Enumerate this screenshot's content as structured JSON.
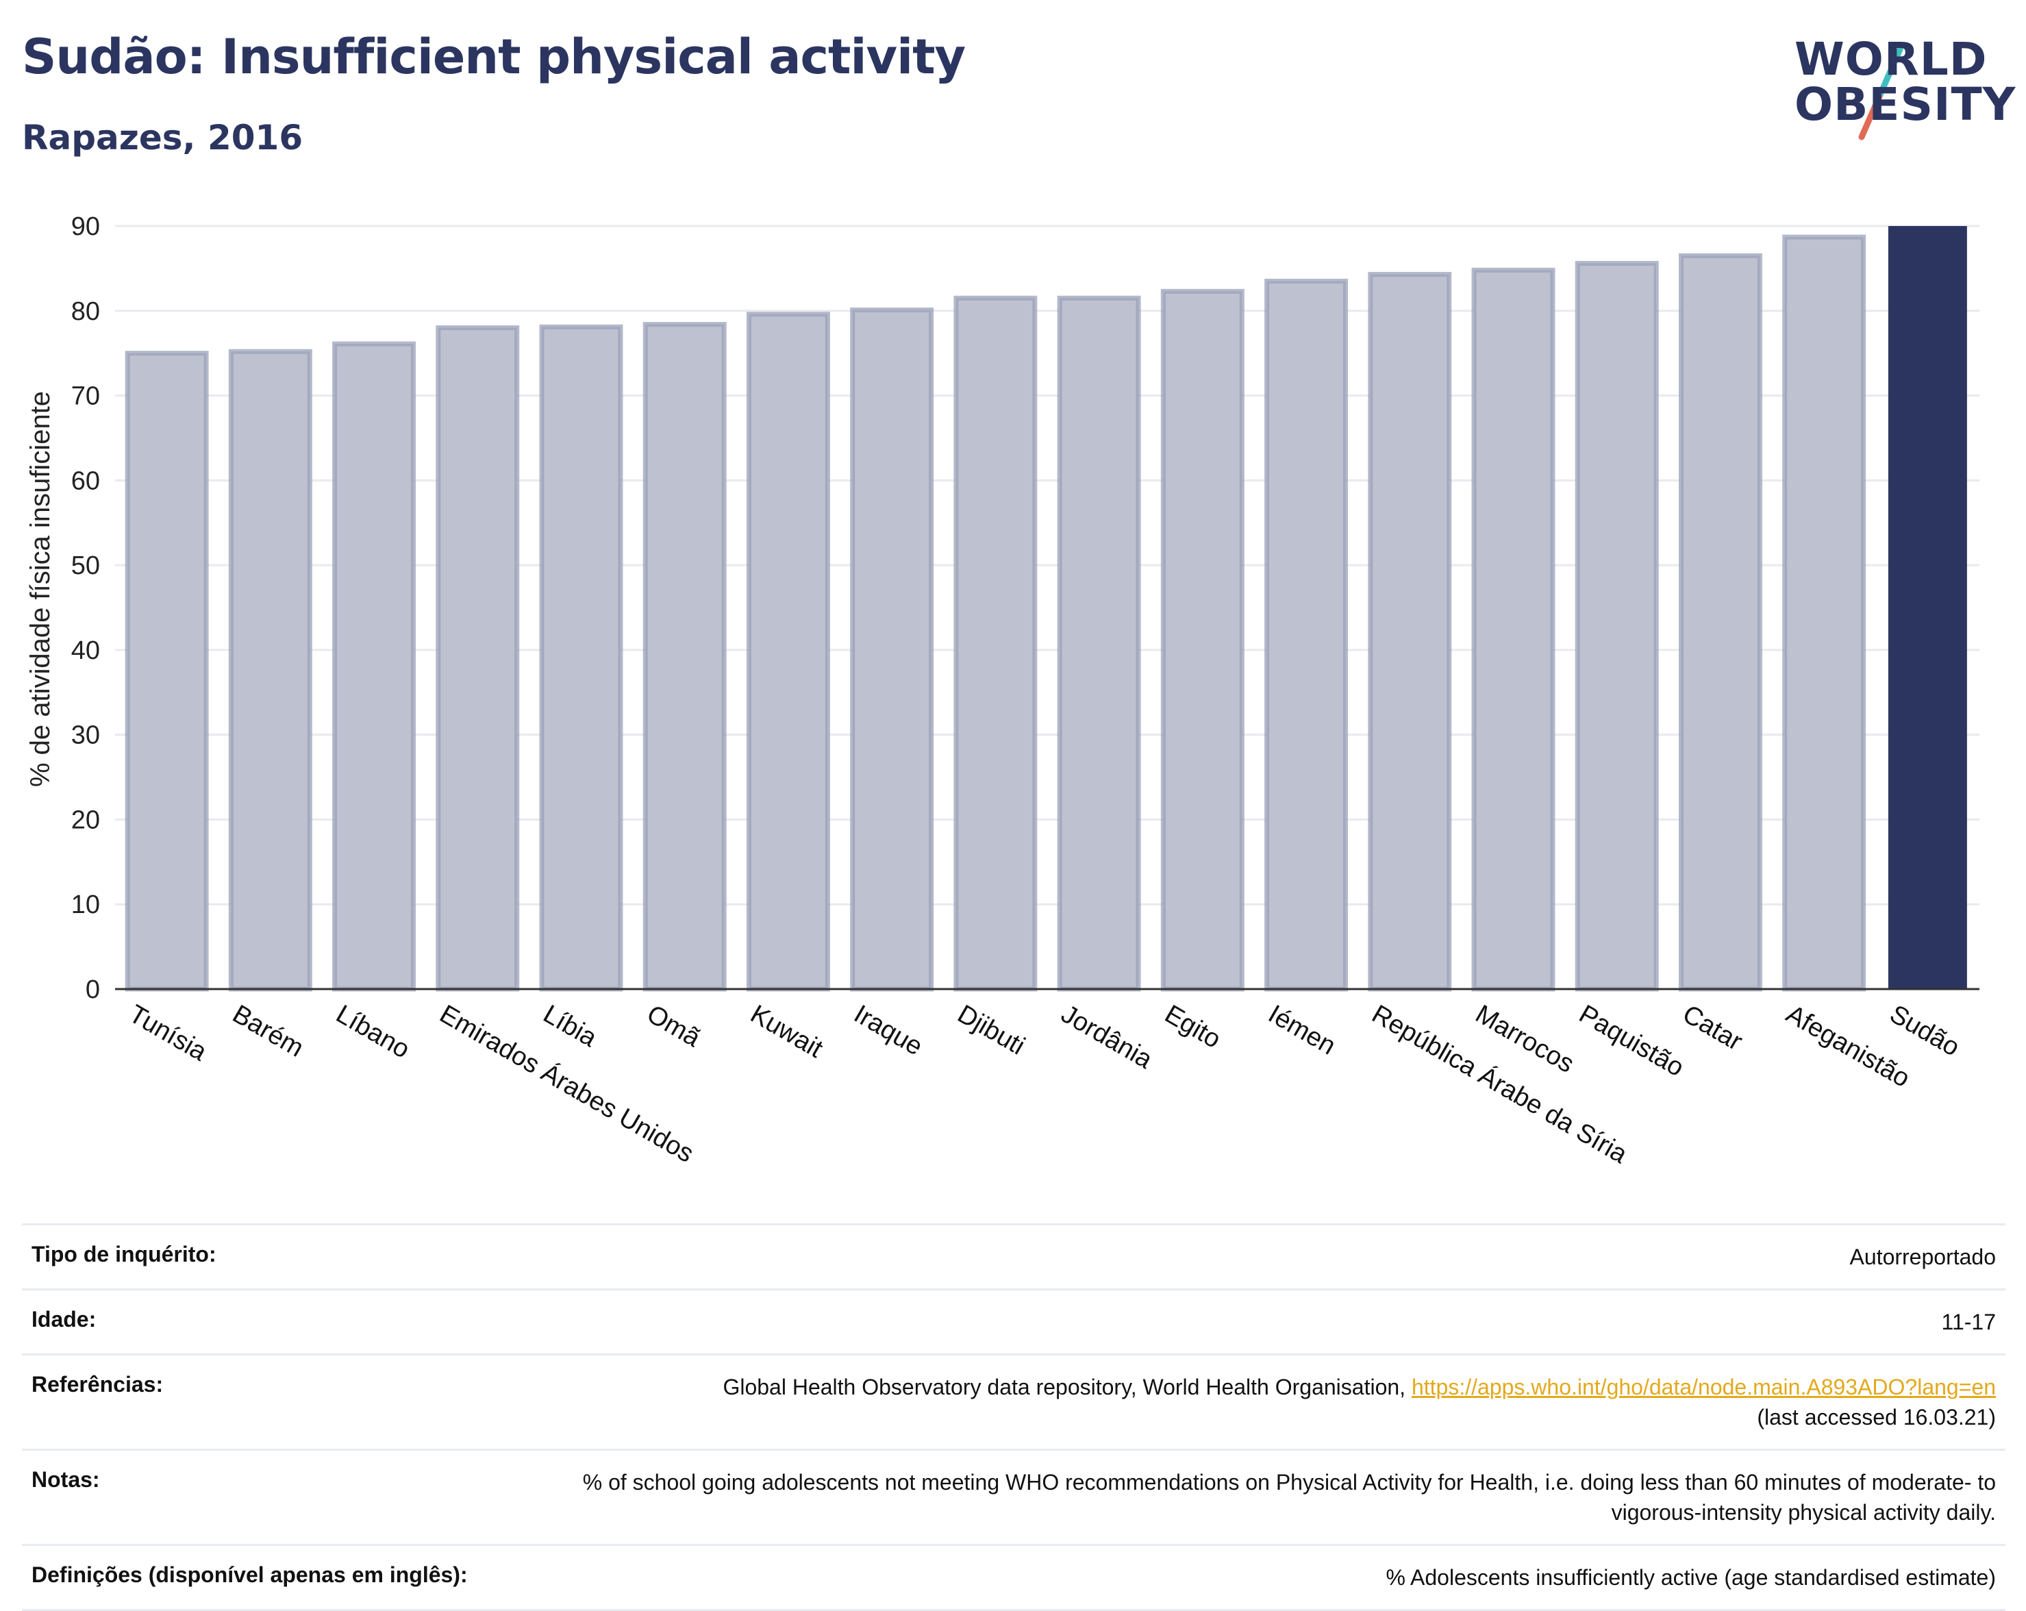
{
  "header": {
    "title": "Sudão: Insufficient physical activity",
    "subtitle": "Rapazes, 2016"
  },
  "logo": {
    "line1": "WORLD",
    "line2": "OBESITY",
    "accent1": "#3fbfbf",
    "accent2": "#e06a55"
  },
  "chart_data": {
    "type": "bar",
    "ylabel": "% de atividade física insuficiente",
    "ylim": [
      0,
      90
    ],
    "yticks": [
      0,
      10,
      20,
      30,
      40,
      50,
      60,
      70,
      80,
      90
    ],
    "grid": true,
    "categories": [
      "Tunísia",
      "Barém",
      "Líbano",
      "Emirados Árabes Unidos",
      "Líbia",
      "Omã",
      "Kuwait",
      "Iraque",
      "Djibuti",
      "Jordânia",
      "Egito",
      "Iémen",
      "República Árabe da Síria",
      "Marrocos",
      "Paquistão",
      "Catar",
      "Afeganistão",
      "Sudão"
    ],
    "values": [
      75.0,
      75.2,
      76.1,
      78.0,
      78.1,
      78.4,
      79.6,
      80.1,
      81.5,
      81.5,
      82.3,
      83.5,
      84.3,
      84.8,
      85.6,
      86.5,
      88.7,
      90.0
    ],
    "highlight": "Sudão",
    "colors": {
      "bar": "#bec1cf",
      "bar_edge": "#9aa0b8",
      "highlight": "#2b3560",
      "grid": "#e9eaef",
      "axis": "#333333"
    }
  },
  "info": {
    "survey_label": "Tipo de inquérito:",
    "survey_value": "Autorreportado",
    "age_label": "Idade:",
    "age_value": "11-17",
    "ref_label": "Referências:",
    "ref_text": "Global Health Observatory data repository, World Health Organisation, ",
    "ref_link": "https://apps.who.int/gho/data/node.main.A893ADO?lang=en",
    "ref_access": "(last accessed 16.03.21)",
    "notes_label": "Notas:",
    "notes_value": "% of school going adolescents not meeting WHO recommendations on Physical Activity for Health, i.e. doing less than 60 minutes of moderate- to vigorous-intensity physical activity daily.",
    "def_label": "Definições (disponível apenas em inglês):",
    "def_value": "% Adolescents insufficiently active (age standardised estimate)"
  }
}
